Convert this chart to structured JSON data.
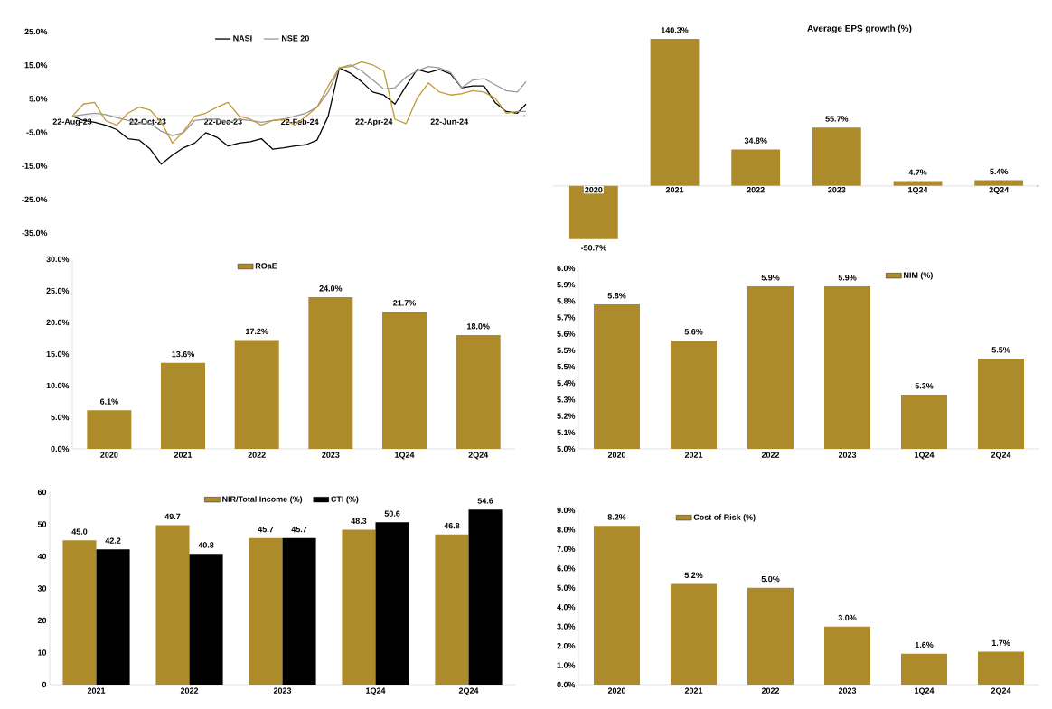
{
  "chart_data": [
    {
      "type": "line",
      "legend": "top",
      "x": [
        "2023-08-22",
        "2023-08-31",
        "2023-09-09",
        "2023-09-18",
        "2023-09-27",
        "2023-10-06",
        "2023-10-15",
        "2023-10-24",
        "2023-11-02",
        "2023-11-11",
        "2023-11-20",
        "2023-11-29",
        "2023-12-08",
        "2023-12-17",
        "2023-12-26",
        "2024-01-04",
        "2024-01-13",
        "2024-01-22",
        "2024-01-31",
        "2024-02-09",
        "2024-02-18",
        "2024-02-27",
        "2024-03-07",
        "2024-03-16",
        "2024-03-25",
        "2024-04-03",
        "2024-04-12",
        "2024-04-21",
        "2024-04-30",
        "2024-05-09",
        "2024-05-18",
        "2024-05-27",
        "2024-06-05",
        "2024-06-14",
        "2024-06-23",
        "2024-07-02",
        "2024-07-11",
        "2024-07-20",
        "2024-07-29",
        "2024-08-07",
        "2024-08-16",
        "2024-08-23"
      ],
      "xlim": [
        "2023-08-22",
        "2024-08-23"
      ],
      "xticks": [
        {
          "value": "2023-08-22",
          "label": "22-Aug-23"
        },
        {
          "value": "2023-10-22",
          "label": "22-Oct-23"
        },
        {
          "value": "2023-12-22",
          "label": "22-Dec-23"
        },
        {
          "value": "2024-02-22",
          "label": "22-Feb-24"
        },
        {
          "value": "2024-04-22",
          "label": "22-Apr-24"
        },
        {
          "value": "2024-06-22",
          "label": "22-Jun-24"
        }
      ],
      "ylim": [
        -35,
        25
      ],
      "yticks": [
        {
          "value": -35,
          "label": "-35.0%"
        },
        {
          "value": -25,
          "label": "-25.0%"
        },
        {
          "value": -15,
          "label": "-15.0%"
        },
        {
          "value": -5,
          "label": "-5.0%"
        },
        {
          "value": 5,
          "label": "5.0%"
        },
        {
          "value": 15,
          "label": "15.0%"
        },
        {
          "value": 25,
          "label": "25.0%"
        }
      ],
      "series": [
        {
          "name": "NASI",
          "color": "#000000",
          "values": [
            -0.2,
            -1.5,
            -2.0,
            -2.9,
            -4.2,
            -6.9,
            -7.3,
            -10.0,
            -14.5,
            -11.8,
            -9.6,
            -8.2,
            -5.1,
            -6.5,
            -9.1,
            -8.2,
            -7.8,
            -6.9,
            -10.0,
            -9.6,
            -9.1,
            -8.7,
            -7.3,
            -0.2,
            14.2,
            12.6,
            10.1,
            7.0,
            6.1,
            3.4,
            8.8,
            13.7,
            12.8,
            13.7,
            12.4,
            8.3,
            8.8,
            8.8,
            3.9,
            1.2,
            0.7,
            3.4
          ]
        },
        {
          "name": "NSE 20",
          "color": "#999999",
          "values": [
            -0.2,
            0.3,
            0.7,
            0.3,
            -0.6,
            -1.5,
            -2.4,
            -2.4,
            -4.7,
            -6.0,
            -5.1,
            -1.5,
            -1.1,
            -1.1,
            -2.0,
            -1.1,
            -1.5,
            -2.0,
            -1.5,
            -1.1,
            -0.2,
            0.7,
            2.5,
            7.0,
            14.2,
            15.1,
            13.3,
            10.6,
            7.9,
            8.3,
            11.5,
            13.3,
            14.6,
            14.2,
            12.8,
            8.3,
            10.6,
            11.0,
            9.2,
            7.4,
            7.0,
            10.1
          ]
        },
        {
          "color": "#c09a35",
          "values": [
            -0.2,
            3.4,
            3.9,
            -1.5,
            -2.9,
            0.7,
            2.5,
            1.6,
            -2.0,
            -8.2,
            -4.7,
            -0.2,
            0.7,
            2.5,
            3.9,
            -0.2,
            -1.1,
            -2.9,
            -1.5,
            -1.1,
            -2.9,
            -0.2,
            2.5,
            8.8,
            14.2,
            14.6,
            16.0,
            15.1,
            13.3,
            -1.1,
            -2.4,
            5.2,
            9.7,
            7.0,
            6.1,
            6.5,
            7.4,
            7.0,
            5.2,
            0.7,
            1.2,
            1.2
          ]
        }
      ]
    },
    {
      "type": "bar",
      "title": "Average EPS growth (%)",
      "tick_labels": "x",
      "categories": [
        "2020",
        "2021",
        "2022",
        "2023",
        "1Q24",
        "2Q24"
      ],
      "values": [
        -50.7,
        140.3,
        34.8,
        55.7,
        4.7,
        5.4
      ],
      "color": "#ad8b2b",
      "value_labels": [
        "-50.7%",
        "140.3%",
        "34.8%",
        "55.7%",
        "4.7%",
        "5.4%"
      ]
    },
    {
      "type": "bar",
      "legend": "top",
      "categories": [
        "2020",
        "2021",
        "2022",
        "2023",
        "1Q24",
        "2Q24"
      ],
      "ylim": [
        0,
        30
      ],
      "yticks": [
        {
          "value": 0,
          "label": "0.0%"
        },
        {
          "value": 5,
          "label": "5.0%"
        },
        {
          "value": 10,
          "label": "10.0%"
        },
        {
          "value": 15,
          "label": "15.0%"
        },
        {
          "value": 20,
          "label": "20.0%"
        },
        {
          "value": 25,
          "label": "25.0%"
        },
        {
          "value": 30,
          "label": "30.0%"
        }
      ],
      "series": [
        {
          "name": "ROaE",
          "color": "#ad8b2b",
          "values": [
            6.1,
            13.6,
            17.2,
            24.0,
            21.7,
            18.0
          ],
          "value_labels": [
            "6.1%",
            "13.6%",
            "17.2%",
            "24.0%",
            "21.7%",
            "18.0%"
          ]
        }
      ]
    },
    {
      "type": "bar",
      "legend": "top",
      "categories": [
        "2020",
        "2021",
        "2022",
        "2023",
        "1Q24",
        "2Q24"
      ],
      "ylim": [
        5.0,
        6.0
      ],
      "yticks": [
        {
          "value": 5.0,
          "label": "5.0%"
        },
        {
          "value": 5.0909,
          "label": "5.1%"
        },
        {
          "value": 5.1818,
          "label": "5.2%"
        },
        {
          "value": 5.2727,
          "label": "5.3%"
        },
        {
          "value": 5.3636,
          "label": "5.4%"
        },
        {
          "value": 5.4545,
          "label": "5.5%"
        },
        {
          "value": 5.5455,
          "label": "5.5%"
        },
        {
          "value": 5.6364,
          "label": "5.6%"
        },
        {
          "value": 5.7273,
          "label": "5.7%"
        },
        {
          "value": 5.8182,
          "label": "5.8%"
        },
        {
          "value": 5.9091,
          "label": "5.9%"
        },
        {
          "value": 6.0,
          "label": "6.0%"
        }
      ],
      "series": [
        {
          "name": "NIM (%)",
          "color": "#ad8b2b",
          "values": [
            5.8,
            5.6,
            5.9,
            5.9,
            5.3,
            5.5
          ],
          "value_labels": [
            "5.8%",
            "5.6%",
            "5.9%",
            "5.9%",
            "5.3%",
            "5.5%"
          ]
        }
      ]
    },
    {
      "type": "bar",
      "legend": "top",
      "categories": [
        "2021",
        "2022",
        "2023",
        "1Q24",
        "2Q24"
      ],
      "ylim": [
        0,
        60
      ],
      "yticks": [
        0,
        10,
        20,
        30,
        40,
        50,
        60
      ],
      "series": [
        {
          "name": "NIR/Total Income (%)",
          "color": "#ad8b2b",
          "values": [
            45.0,
            49.7,
            45.7,
            48.3,
            46.8
          ],
          "value_labels": [
            "45.0",
            "49.7",
            "45.7",
            "48.3",
            "46.8"
          ]
        },
        {
          "name": "CTI (%)",
          "color": "#000000",
          "values": [
            42.2,
            40.8,
            45.7,
            50.6,
            54.6
          ],
          "value_labels": [
            "42.2",
            "40.8",
            "45.7",
            "50.6",
            "54.6"
          ]
        }
      ]
    },
    {
      "type": "bar",
      "legend": "top",
      "categories": [
        "2020",
        "2021",
        "2022",
        "2023",
        "1Q24",
        "2Q24"
      ],
      "ylim": [
        0,
        9
      ],
      "yticks": [
        {
          "value": 0,
          "label": "0.0%"
        },
        {
          "value": 1,
          "label": "1.0%"
        },
        {
          "value": 2,
          "label": "2.0%"
        },
        {
          "value": 3,
          "label": "3.0%"
        },
        {
          "value": 4,
          "label": "4.0%"
        },
        {
          "value": 5,
          "label": "5.0%"
        },
        {
          "value": 6,
          "label": "6.0%"
        },
        {
          "value": 7,
          "label": "7.0%"
        },
        {
          "value": 8,
          "label": "8.0%"
        },
        {
          "value": 9,
          "label": "9.0%"
        }
      ],
      "series": [
        {
          "name": "Cost of Risk (%)",
          "color": "#ad8b2b",
          "values": [
            8.2,
            5.2,
            5.0,
            3.0,
            1.6,
            1.7
          ],
          "value_labels": [
            "8.2%",
            "5.2%",
            "5.0%",
            "3.0%",
            "1.6%",
            "1.7%"
          ]
        }
      ]
    }
  ]
}
